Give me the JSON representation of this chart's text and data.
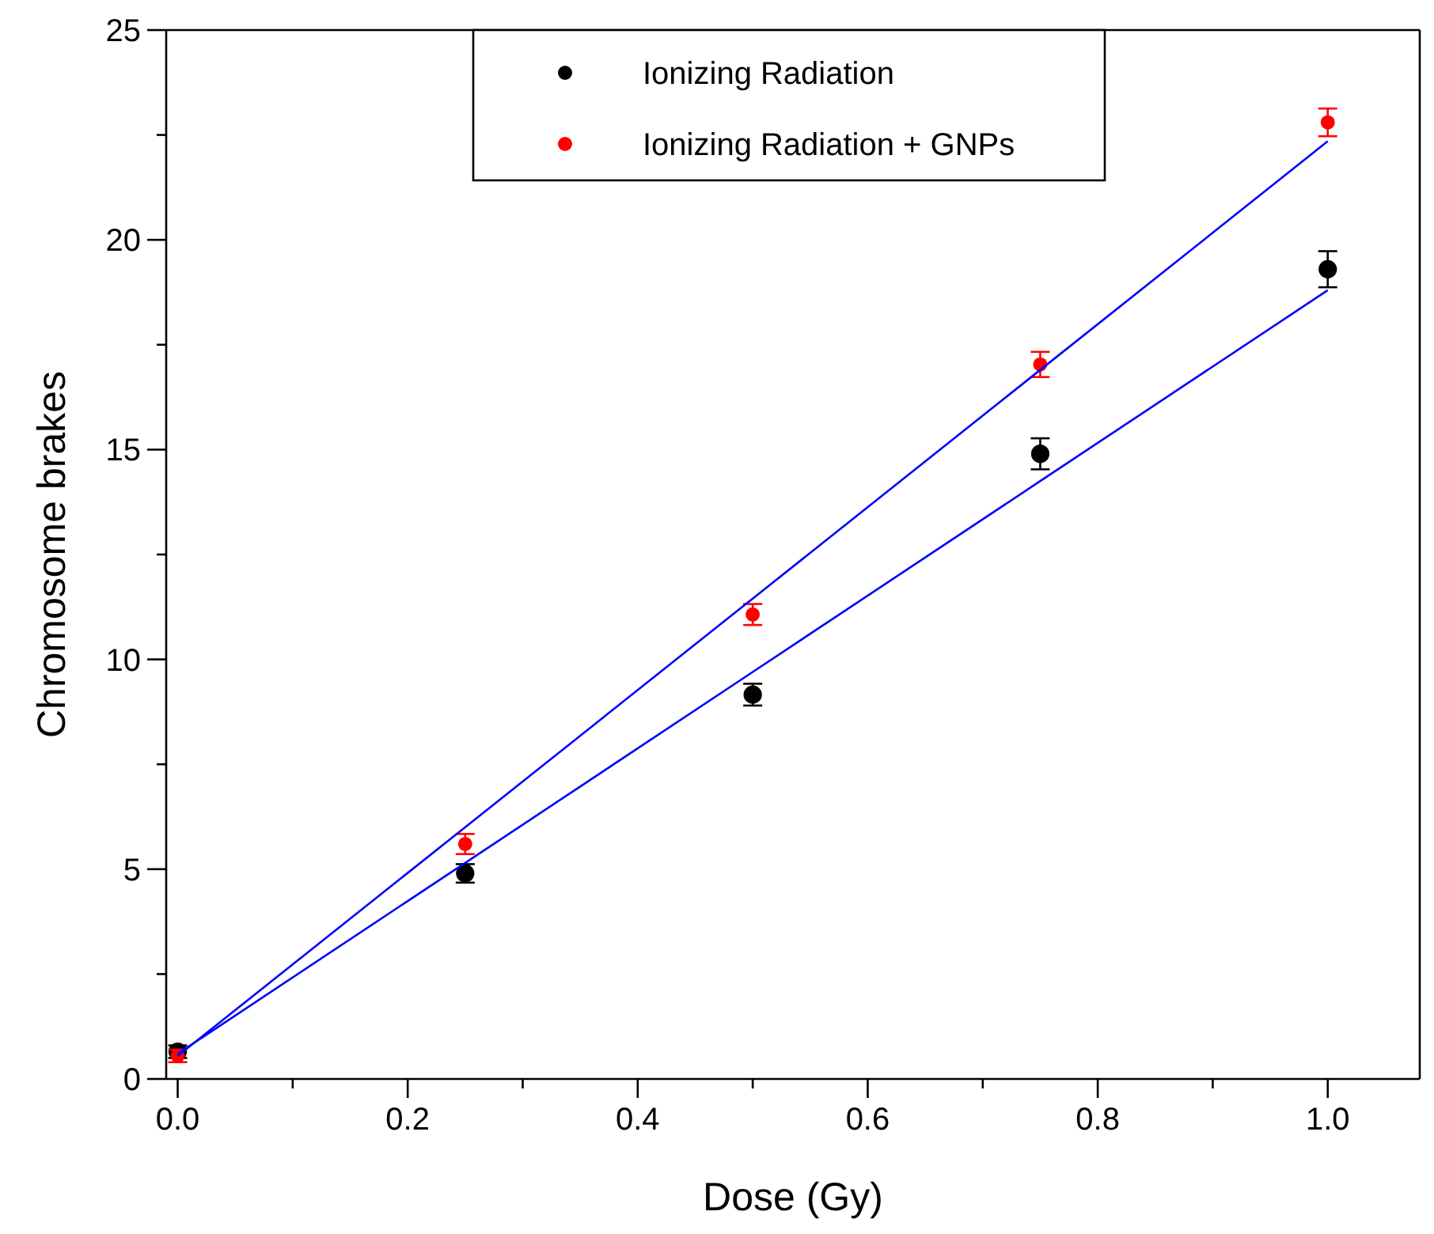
{
  "chart_data": {
    "type": "scatter",
    "xlabel": "Dose (Gy)",
    "ylabel": "Chromosome brakes",
    "x": [
      0,
      0.25,
      0.5,
      0.75,
      1.0
    ],
    "series": [
      {
        "name": "Ionizing Radiation",
        "color": "#000000",
        "marker": "circle",
        "values": [
          0.65,
          4.9,
          9.16,
          14.9,
          19.3
        ],
        "errors": [
          0.15,
          0.22,
          0.26,
          0.37,
          0.43
        ]
      },
      {
        "name": "Ionizing Radiation + GNPs",
        "color": "#ff0000",
        "marker": "circle",
        "values": [
          0.55,
          5.6,
          11.07,
          17.03,
          22.8
        ],
        "errors": [
          0.15,
          0.24,
          0.25,
          0.3,
          0.33
        ]
      },
      {
        "type": "line",
        "color": "#0000ff",
        "marker": "none",
        "values": [
          0.6,
          5.15,
          9.7,
          14.25,
          18.8
        ]
      },
      {
        "type": "line",
        "color": "#0000ff",
        "marker": "none",
        "values": [
          0.55,
          6.0,
          11.45,
          16.9,
          22.35
        ]
      }
    ],
    "xlim": [
      -0.01,
      1.08
    ],
    "ylim": [
      0,
      25
    ],
    "xticks": [
      {
        "value": 0,
        "label": "0.0"
      },
      {
        "value": 0.1,
        "label": null
      },
      {
        "value": 0.2,
        "label": "0.2"
      },
      {
        "value": 0.3,
        "label": null
      },
      {
        "value": 0.4,
        "label": "0.4"
      },
      {
        "value": 0.5,
        "label": null
      },
      {
        "value": 0.6,
        "label": "0.6"
      },
      {
        "value": 0.7,
        "label": null
      },
      {
        "value": 0.8,
        "label": "0.8"
      },
      {
        "value": 0.9,
        "label": null
      },
      {
        "value": 1,
        "label": "1.0"
      }
    ],
    "yticks": [
      0,
      {
        "value": 2.5,
        "label": null
      },
      5,
      {
        "value": 7.5,
        "label": null
      },
      10,
      {
        "value": 12.5,
        "label": null
      },
      15,
      {
        "value": 17.5,
        "label": null
      },
      20,
      {
        "value": 22.5,
        "label": null
      },
      25
    ],
    "legend": "top",
    "grid": false
  }
}
